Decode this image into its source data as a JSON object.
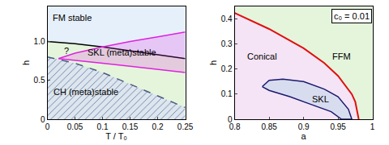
{
  "chart_data": [
    {
      "type": "line",
      "xlabel": "T / T₀",
      "ylabel": "h",
      "xlim": [
        0,
        0.25
      ],
      "ylim": [
        0,
        1.45
      ],
      "xticks": [
        0,
        0.05,
        0.1,
        0.15,
        0.2,
        0.25
      ],
      "yticks": [
        0,
        0.5,
        {
          "value": 1,
          "label": "1.0"
        }
      ],
      "series": [
        {
          "type": "area",
          "color": "#000000",
          "x": [
            0,
            0.05,
            0.1,
            0.15,
            0.2,
            0.25
          ],
          "values": [
            1.0,
            0.97,
            0.93,
            0.88,
            0.83,
            0.78
          ]
        },
        {
          "type": "line",
          "color": "#e020e0",
          "x": [
            0.02,
            0.05,
            0.1,
            0.15,
            0.2,
            0.25
          ],
          "values": [
            0.78,
            0.76,
            0.72,
            0.68,
            0.64,
            0.6
          ]
        },
        {
          "type": "band",
          "color": "#e020e0",
          "x": [
            0.02,
            0.05,
            0.1,
            0.15,
            0.2,
            0.25
          ],
          "values": [
            0.78,
            0.85,
            0.93,
            1.0,
            1.06,
            1.12
          ]
        },
        {
          "type": "hatched",
          "color": "#4a5a80",
          "line_style": "dashed",
          "x": [
            0,
            0.05,
            0.1,
            0.15,
            0.2,
            0.25
          ],
          "values": [
            0.8,
            0.72,
            0.6,
            0.45,
            0.3,
            0.15
          ]
        }
      ],
      "annotations": [
        {
          "text": "FM stable",
          "x": 0.045,
          "y": 1.3
        },
        {
          "text": "?",
          "x": 0.035,
          "y": 0.88
        },
        {
          "text": "SKL (meta)stable",
          "x": 0.135,
          "y": 0.86
        },
        {
          "text": "CH (meta)stable",
          "x": 0.07,
          "y": 0.35
        }
      ]
    },
    {
      "type": "line",
      "xlabel": "a",
      "ylabel": "h",
      "xlim": [
        0.8,
        1
      ],
      "ylim": [
        0,
        0.45
      ],
      "xticks": [
        0.8,
        0.85,
        0.9,
        0.95,
        1
      ],
      "yticks": [
        0,
        0.1,
        0.2,
        0.3,
        0.4
      ],
      "series": [
        {
          "type": "areax",
          "color": "#e01010",
          "x": [
            0.8,
            0.85,
            0.9,
            0.93,
            0.95,
            0.97,
            0.975,
            0.98
          ],
          "values": [
            0.424,
            0.36,
            0.283,
            0.224,
            0.173,
            0.1,
            0.07,
            0
          ]
        },
        {
          "type": "region",
          "color": "#1a1a6e",
          "x": [
            0.84,
            0.85,
            0.87,
            0.9,
            0.93,
            0.95,
            0.965,
            0.97,
            0.955,
            0.94,
            0.91,
            0.88,
            0.85,
            0.84
          ],
          "values": [
            0.13,
            0.155,
            0.16,
            0.15,
            0.12,
            0.09,
            0.04,
            0,
            0,
            0.03,
            0.06,
            0.09,
            0.115,
            0.13
          ]
        }
      ],
      "annotations": [
        {
          "text": "Conical",
          "x": 0.84,
          "y": 0.25
        },
        {
          "text": "FFM",
          "x": 0.955,
          "y": 0.25
        },
        {
          "text": "SKL",
          "x": 0.925,
          "y": 0.08
        },
        {
          "text": "c₀ = 0.01",
          "x": 0.97,
          "y": 0.41,
          "marker": "box"
        }
      ]
    }
  ]
}
